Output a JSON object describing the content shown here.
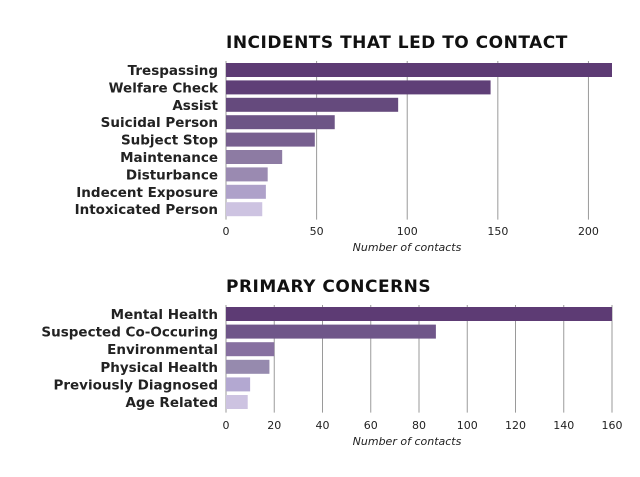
{
  "chart_data": [
    {
      "type": "bar",
      "orientation": "horizontal",
      "title": "INCIDENTS THAT LED TO CONTACT",
      "xlabel": "Number of contacts",
      "ylabel": "",
      "categories": [
        "Trespassing",
        "Welfare Check",
        "Assist",
        "Suicidal Person",
        "Subject Stop",
        "Maintenance",
        "Disturbance",
        "Indecent Exposure",
        "Intoxicated Person"
      ],
      "values": [
        213,
        146,
        95,
        60,
        49,
        31,
        23,
        22,
        20
      ],
      "xlim": [
        0,
        213
      ],
      "xticks": [
        0,
        50,
        100,
        150,
        200
      ],
      "grid": "vertical",
      "colors": [
        "#5d3b74",
        "#5f3f77",
        "#654a7d",
        "#6d5586",
        "#775f8f",
        "#8d7ba3",
        "#9a8ab1",
        "#aea1c9",
        "#cdc3e1"
      ]
    },
    {
      "type": "bar",
      "orientation": "horizontal",
      "title": "PRIMARY CONCERNS",
      "xlabel": "Number of contacts",
      "ylabel": "",
      "categories": [
        "Mental Health",
        "Suspected Co-Occuring",
        "Environmental",
        "Physical Health",
        "Previously Diagnosed",
        "Age Related"
      ],
      "values": [
        160,
        87,
        20,
        18,
        10,
        9
      ],
      "xlim": [
        0,
        160
      ],
      "xticks": [
        0,
        20,
        40,
        60,
        80,
        100,
        120,
        140,
        160
      ],
      "grid": "vertical",
      "colors": [
        "#5d3b74",
        "#6f5689",
        "#8770a0",
        "#968aae",
        "#b3a8d1",
        "#cdc3e1"
      ]
    }
  ]
}
